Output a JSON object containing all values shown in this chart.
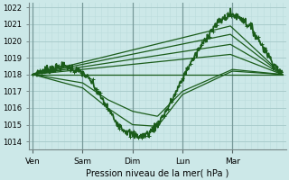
{
  "xlabel": "Pression niveau de la mer( hPa )",
  "ylim": [
    1013.5,
    1022.3
  ],
  "yticks": [
    1014,
    1015,
    1016,
    1017,
    1018,
    1019,
    1020,
    1021,
    1022
  ],
  "xtick_labels": [
    "Ven",
    "Sam",
    "Dim",
    "Lun",
    "Mar"
  ],
  "xtick_positions": [
    0,
    24,
    48,
    72,
    96
  ],
  "xlim": [
    -2,
    122
  ],
  "bg_color": "#cce8e8",
  "grid_major_color": "#aacccc",
  "grid_minor_color": "#bbdddd",
  "line_color": "#1a5c1a"
}
